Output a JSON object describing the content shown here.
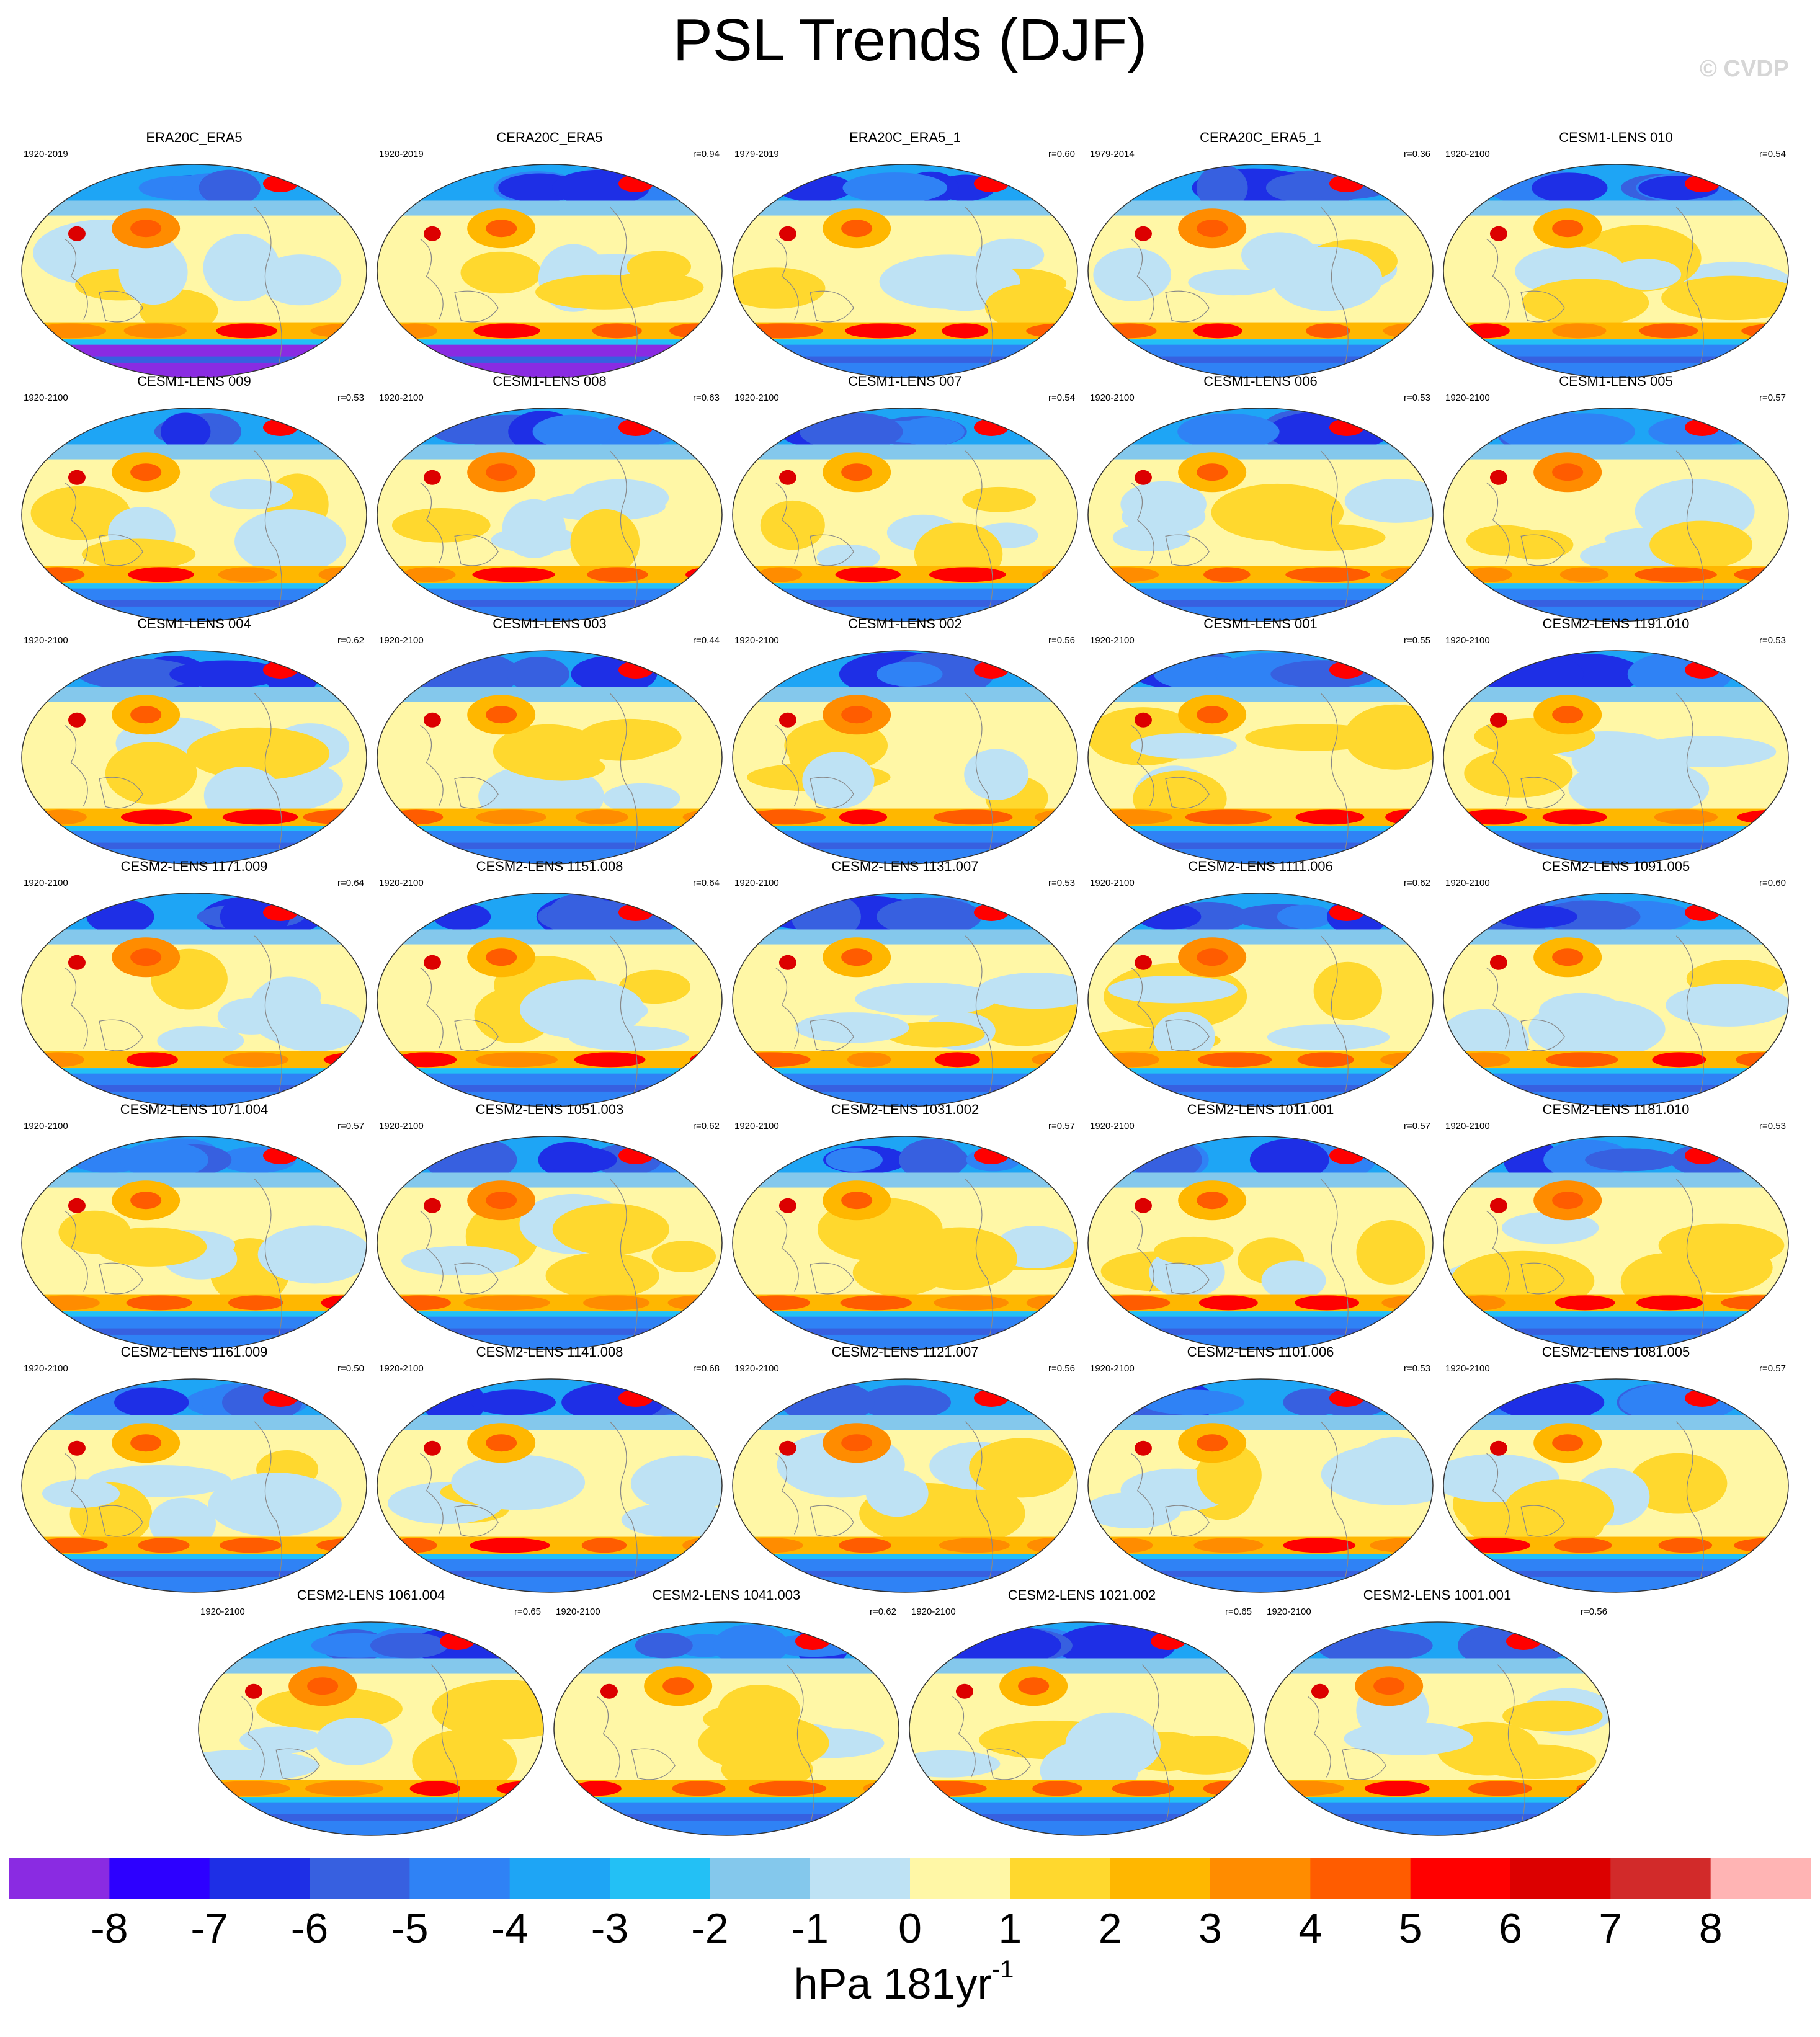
{
  "title": "PSL Trends (DJF)",
  "credit": "© CVDP",
  "colors": {
    "levels": [
      "#8A2BE2",
      "#2D00FF",
      "#1E2FE6",
      "#3760E0",
      "#2F82F5",
      "#1EA5F5",
      "#23C0F5",
      "#84C8EC",
      "#BEE2F4",
      "#FFF7A6",
      "#FFD82E",
      "#FFB700",
      "#FF8C00",
      "#FF5C00",
      "#FF0000",
      "#DC0000",
      "#D22A2A",
      "#FFB4B4"
    ],
    "land": "#888888",
    "panel_frame": "#333333"
  },
  "colorbar": {
    "ticks": [
      "-8",
      "-7",
      "-6",
      "-5",
      "-4",
      "-3",
      "-2",
      "-1",
      "0",
      "1",
      "2",
      "3",
      "4",
      "5",
      "6",
      "7",
      "8"
    ],
    "label": "hPa 181yr",
    "label_exp": "-1"
  },
  "chart_data": {
    "type": "heatmap",
    "description_type": "map-panels",
    "panels": [
      {
        "title": "ERA20C_ERA5",
        "years": "1920-2019",
        "r": ""
      },
      {
        "title": "CERA20C_ERA5",
        "years": "1920-2019",
        "r": "r=0.94"
      },
      {
        "title": "ERA20C_ERA5_1",
        "years": "1979-2019",
        "r": "r=0.60"
      },
      {
        "title": "CERA20C_ERA5_1",
        "years": "1979-2014",
        "r": "r=0.36"
      },
      {
        "title": "CESM1-LENS 010",
        "years": "1920-2100",
        "r": "r=0.54"
      },
      {
        "title": "CESM1-LENS 009",
        "years": "1920-2100",
        "r": "r=0.53"
      },
      {
        "title": "CESM1-LENS 008",
        "years": "1920-2100",
        "r": "r=0.63"
      },
      {
        "title": "CESM1-LENS 007",
        "years": "1920-2100",
        "r": "r=0.54"
      },
      {
        "title": "CESM1-LENS 006",
        "years": "1920-2100",
        "r": "r=0.53"
      },
      {
        "title": "CESM1-LENS 005",
        "years": "1920-2100",
        "r": "r=0.57"
      },
      {
        "title": "CESM1-LENS 004",
        "years": "1920-2100",
        "r": "r=0.62"
      },
      {
        "title": "CESM1-LENS 003",
        "years": "1920-2100",
        "r": "r=0.44"
      },
      {
        "title": "CESM1-LENS 002",
        "years": "1920-2100",
        "r": "r=0.56"
      },
      {
        "title": "CESM1-LENS 001",
        "years": "1920-2100",
        "r": "r=0.55"
      },
      {
        "title": "CESM2-LENS 1191.010",
        "years": "1920-2100",
        "r": "r=0.53"
      },
      {
        "title": "CESM2-LENS 1171.009",
        "years": "1920-2100",
        "r": "r=0.64"
      },
      {
        "title": "CESM2-LENS 1151.008",
        "years": "1920-2100",
        "r": "r=0.64"
      },
      {
        "title": "CESM2-LENS 1131.007",
        "years": "1920-2100",
        "r": "r=0.53"
      },
      {
        "title": "CESM2-LENS 1111.006",
        "years": "1920-2100",
        "r": "r=0.62"
      },
      {
        "title": "CESM2-LENS 1091.005",
        "years": "1920-2100",
        "r": "r=0.60"
      },
      {
        "title": "CESM2-LENS 1071.004",
        "years": "1920-2100",
        "r": "r=0.57"
      },
      {
        "title": "CESM2-LENS 1051.003",
        "years": "1920-2100",
        "r": "r=0.62"
      },
      {
        "title": "CESM2-LENS 1031.002",
        "years": "1920-2100",
        "r": "r=0.57"
      },
      {
        "title": "CESM2-LENS 1011.001",
        "years": "1920-2100",
        "r": "r=0.57"
      },
      {
        "title": "CESM2-LENS 1181.010",
        "years": "1920-2100",
        "r": "r=0.53"
      },
      {
        "title": "CESM2-LENS 1161.009",
        "years": "1920-2100",
        "r": "r=0.50"
      },
      {
        "title": "CESM2-LENS 1141.008",
        "years": "1920-2100",
        "r": "r=0.68"
      },
      {
        "title": "CESM2-LENS 1121.007",
        "years": "1920-2100",
        "r": "r=0.56"
      },
      {
        "title": "CESM2-LENS 1101.006",
        "years": "1920-2100",
        "r": "r=0.53"
      },
      {
        "title": "CESM2-LENS 1081.005",
        "years": "1920-2100",
        "r": "r=0.57"
      },
      {
        "title": "CESM2-LENS 1061.004",
        "years": "1920-2100",
        "r": "r=0.65"
      },
      {
        "title": "CESM2-LENS 1041.003",
        "years": "1920-2100",
        "r": "r=0.62"
      },
      {
        "title": "CESM2-LENS 1021.002",
        "years": "1920-2100",
        "r": "r=0.65"
      },
      {
        "title": "CESM2-LENS 1001.001",
        "years": "1920-2100",
        "r": "r=0.56"
      }
    ],
    "colorbar_range": [
      -8,
      8
    ],
    "colorbar_step": 1
  }
}
